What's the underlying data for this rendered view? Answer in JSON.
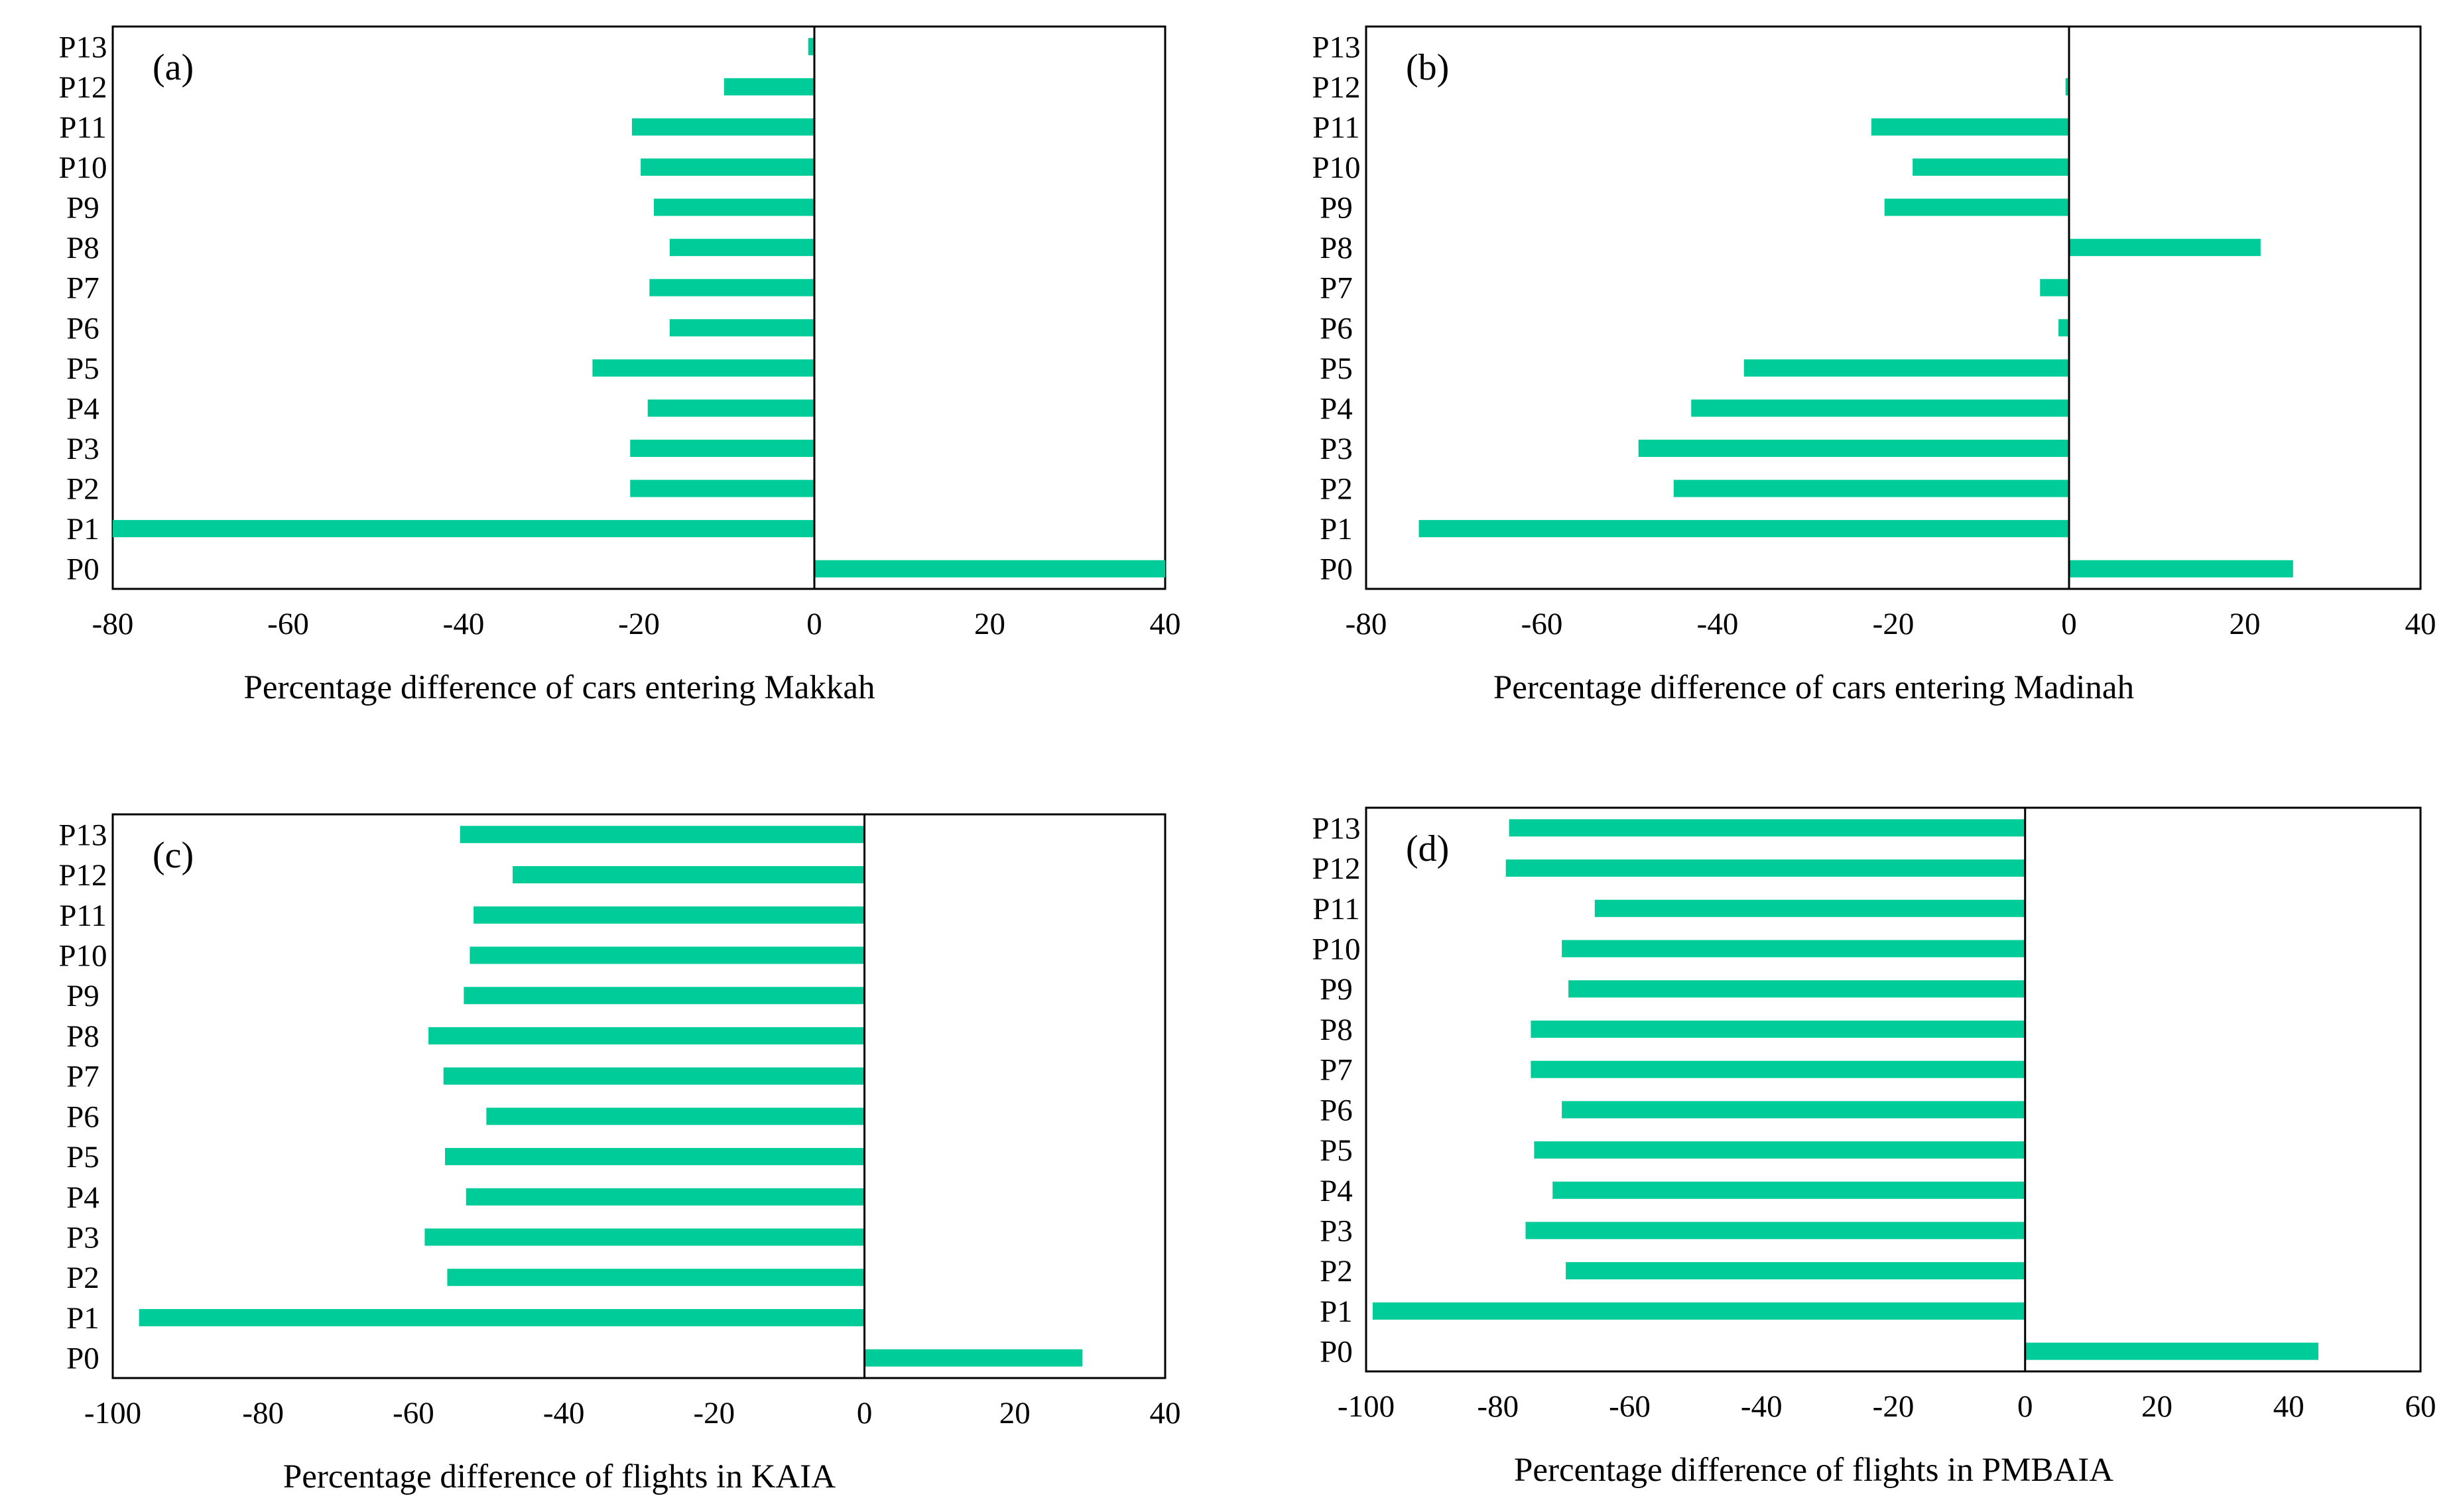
{
  "bar_color": "#00CC99",
  "chart_data": [
    {
      "type": "bar",
      "orientation": "horizontal",
      "panel_label": "(a)",
      "categories": [
        "P0",
        "P1",
        "P2",
        "P3",
        "P4",
        "P5",
        "P6",
        "P7",
        "P8",
        "P9",
        "P10",
        "P11",
        "P12",
        "P13"
      ],
      "values": [
        40,
        -80,
        -21,
        -21,
        -19,
        -25.3,
        -16.5,
        -18.8,
        -16.5,
        -18.3,
        -19.8,
        -20.8,
        -10.3,
        -0.7
      ],
      "xlabel": "Percentage  difference  of cars  entering  Makkah",
      "xlim": [
        -80,
        40
      ],
      "xticks": [
        -80,
        -60,
        -40,
        -20,
        0,
        20,
        40
      ],
      "grid": false
    },
    {
      "type": "bar",
      "orientation": "horizontal",
      "panel_label": "(b)",
      "categories": [
        "P0",
        "P1",
        "P2",
        "P3",
        "P4",
        "P5",
        "P6",
        "P7",
        "P8",
        "P9",
        "P10",
        "P11",
        "P12",
        "P13"
      ],
      "values": [
        25.5,
        -74,
        -45,
        -49,
        -43,
        -37,
        -1.2,
        -3.3,
        21.8,
        -21,
        -17.8,
        -22.5,
        -0.4,
        0
      ],
      "xlabel": "Percentage  difference  of cars  entering  Madinah",
      "xlim": [
        -80,
        40
      ],
      "xticks": [
        -80,
        -60,
        -40,
        -20,
        0,
        20,
        40
      ],
      "grid": false
    },
    {
      "type": "bar",
      "orientation": "horizontal",
      "panel_label": "(c)",
      "categories": [
        "P0",
        "P1",
        "P2",
        "P3",
        "P4",
        "P5",
        "P6",
        "P7",
        "P8",
        "P9",
        "P10",
        "P11",
        "P12",
        "P13"
      ],
      "values": [
        29,
        -96.5,
        -55.5,
        -58.5,
        -53,
        -55.8,
        -50.3,
        -56,
        -58,
        -53.3,
        -52.5,
        -52,
        -46.8,
        -53.8
      ],
      "xlabel": "Percentage  difference  of flights  in  KAIA",
      "xlim": [
        -100,
        40
      ],
      "xticks": [
        -100,
        -80,
        -60,
        -40,
        -20,
        0,
        20,
        40
      ],
      "grid": false
    },
    {
      "type": "bar",
      "orientation": "horizontal",
      "panel_label": "(d)",
      "categories": [
        "P0",
        "P1",
        "P2",
        "P3",
        "P4",
        "P5",
        "P6",
        "P7",
        "P8",
        "P9",
        "P10",
        "P11",
        "P12",
        "P13"
      ],
      "values": [
        44.5,
        -99,
        -69.7,
        -75.8,
        -71.7,
        -74.5,
        -70.3,
        -75,
        -75,
        -69.3,
        -70.3,
        -65.3,
        -78.8,
        -78.3
      ],
      "xlabel": "Percentage  difference  of flights  in PMBAIA",
      "xlim": [
        -100,
        60
      ],
      "xticks": [
        -100,
        -80,
        -60,
        -40,
        -20,
        0,
        20,
        40,
        60
      ],
      "grid": false
    }
  ]
}
